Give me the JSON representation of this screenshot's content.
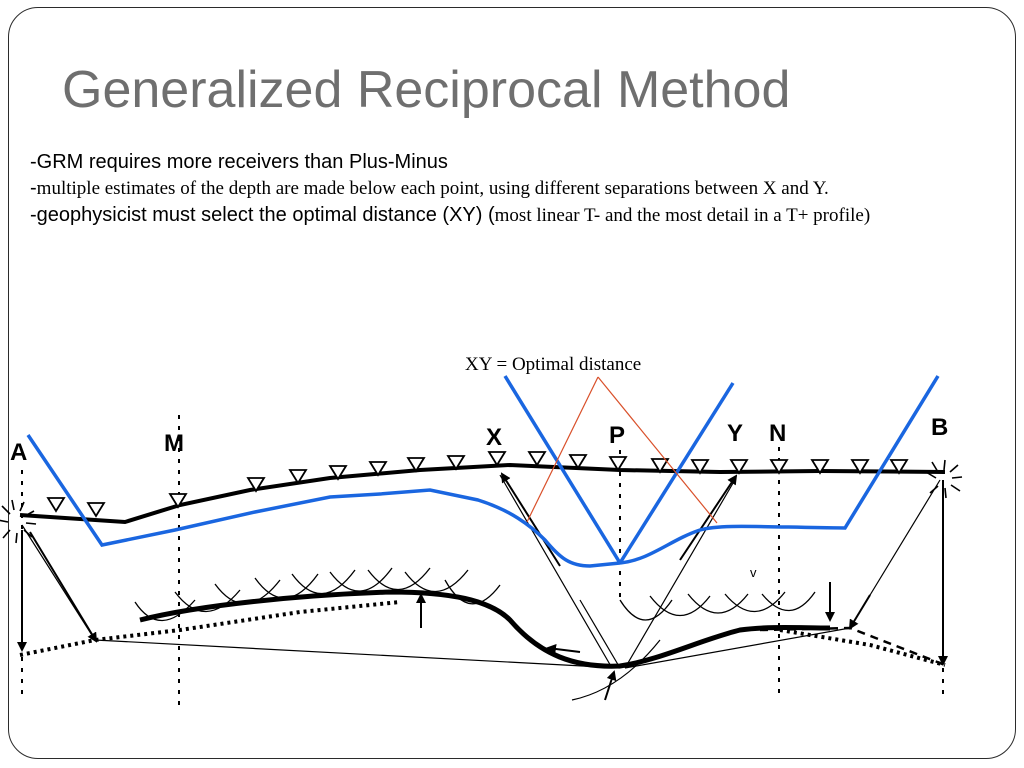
{
  "slide": {
    "title": "Generalized Reciprocal Method",
    "bullets": {
      "b1": "-GRM requires more receivers than Plus-Minus",
      "b2_dash": "-",
      "b2_text": "multiple estimates of the depth are made below each point, using different separations between X and Y.",
      "b3_main": "-geophysicist must select the optimal distance (XY) (",
      "b3_note": "most linear T- and the most detail in a T+ profile)"
    }
  },
  "diagram": {
    "annotation": "XY = Optimal distance",
    "labels": {
      "a": "A",
      "m": "M",
      "x": "X",
      "p": "P",
      "y": "Y",
      "n": "N",
      "b": "B",
      "v": "v"
    },
    "colors": {
      "overlay_lines": "#1a66e0",
      "optimal_rays": "#d9502a",
      "ink": "#000000"
    }
  }
}
